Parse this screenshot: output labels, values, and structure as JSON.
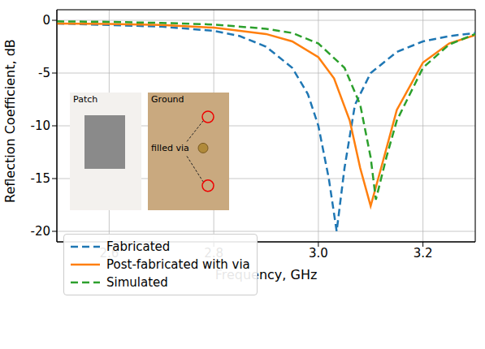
{
  "chart_data": {
    "type": "line",
    "x_label": "Frequency, GHz",
    "y_label": "Reflection Coefficient, dB",
    "xlim": [
      2.5,
      3.3
    ],
    "ylim": [
      -21,
      1
    ],
    "xticks": [
      2.6,
      2.8,
      {
        "value": 3,
        "label": "3.0"
      },
      3.2
    ],
    "yticks": [
      -20,
      -15,
      -10,
      -5,
      0
    ],
    "grid": true,
    "legend": "lower left",
    "annotations": [
      {
        "text": "Patch"
      },
      {
        "text": "Ground"
      },
      {
        "text": "filled via"
      }
    ],
    "series": [
      {
        "name": "Fabricated",
        "color": "#1f77b4",
        "line_style": "dashed",
        "x": [
          2.5,
          2.6,
          2.7,
          2.8,
          2.85,
          2.9,
          2.95,
          2.98,
          3.0,
          3.02,
          3.035,
          3.05,
          3.07,
          3.1,
          3.15,
          3.2,
          3.25,
          3.3
        ],
        "values": [
          -0.3,
          -0.45,
          -0.6,
          -1.0,
          -1.5,
          -2.5,
          -4.5,
          -7,
          -10,
          -15,
          -20,
          -14,
          -8,
          -5,
          -3,
          -2,
          -1.5,
          -1.2
        ]
      },
      {
        "name": "Post-fabricated with via",
        "color": "#ff7f0e",
        "line_style": "solid",
        "x": [
          2.5,
          2.6,
          2.7,
          2.8,
          2.9,
          2.95,
          3.0,
          3.03,
          3.06,
          3.08,
          3.1,
          3.12,
          3.15,
          3.2,
          3.25,
          3.3
        ],
        "values": [
          -0.3,
          -0.35,
          -0.45,
          -0.7,
          -1.3,
          -2,
          -3.5,
          -5.5,
          -9.5,
          -14,
          -17.6,
          -14,
          -8.5,
          -4,
          -2.2,
          -1.4
        ]
      },
      {
        "name": "Simulated",
        "color": "#2ca02c",
        "line_style": "dashed",
        "x": [
          2.5,
          2.6,
          2.7,
          2.8,
          2.9,
          2.95,
          3.0,
          3.05,
          3.08,
          3.1,
          3.11,
          3.13,
          3.15,
          3.2,
          3.25,
          3.3
        ],
        "values": [
          -0.1,
          -0.15,
          -0.25,
          -0.4,
          -0.8,
          -1.2,
          -2.2,
          -4.5,
          -8,
          -13,
          -17,
          -13,
          -9.5,
          -4.5,
          -2.3,
          -1.3
        ]
      }
    ]
  }
}
